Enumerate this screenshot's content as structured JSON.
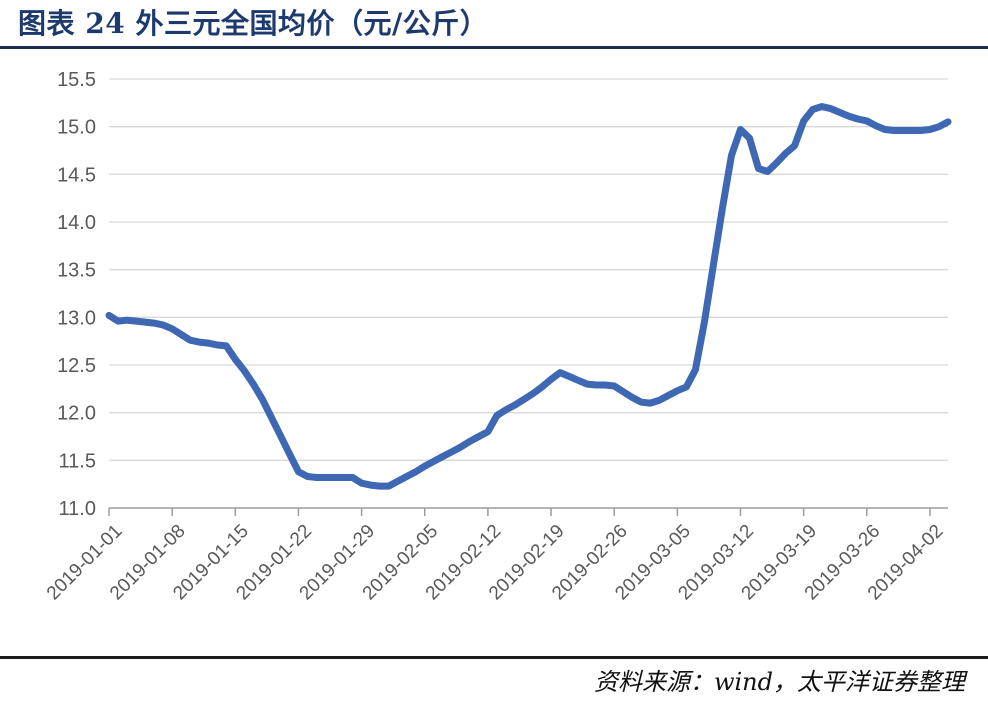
{
  "header": {
    "title": "图表 24  外三元全国均价（元/公斤）"
  },
  "footer": {
    "source": "资料来源：wind，太平洋证券整理"
  },
  "colors": {
    "title": "#1d3a6e",
    "title_rule": "#1c2c50",
    "separator": "#1a1a1a",
    "line": "#3e68b4",
    "gridline": "#d9d9d9",
    "axis": "#9b9b9b",
    "tick_label": "#595959"
  },
  "chart_data": {
    "type": "line",
    "title": "外三元全国均价（元/公斤）",
    "xlabel": "",
    "ylabel": "",
    "legend_position": "none",
    "grid": "horizontal",
    "ylim": [
      11.0,
      15.5
    ],
    "ytick_step": 0.5,
    "y_tick_labels": [
      "11.0",
      "11.5",
      "12.0",
      "12.5",
      "13.0",
      "13.5",
      "14.0",
      "14.5",
      "15.0",
      "15.5"
    ],
    "x_tick_labels": [
      "2019-01-01",
      "2019-01-08",
      "2019-01-15",
      "2019-01-22",
      "2019-01-29",
      "2019-02-05",
      "2019-02-12",
      "2019-02-19",
      "2019-02-26",
      "2019-03-05",
      "2019-03-12",
      "2019-03-19",
      "2019-03-26",
      "2019-04-02"
    ],
    "x_start": "2019-01-01",
    "x_end": "2019-04-04",
    "x_frequency_days": 1,
    "line_color": "#3e68b4",
    "gridline_color": "#d9d9d9",
    "axis_color": "#9b9b9b",
    "label_color": "#595959",
    "series": [
      {
        "name": "外三元全国均价",
        "values": [
          13.02,
          12.96,
          12.97,
          12.96,
          12.95,
          12.94,
          12.92,
          12.88,
          12.82,
          12.76,
          12.74,
          12.73,
          12.71,
          12.7,
          12.56,
          12.44,
          12.3,
          12.14,
          11.95,
          11.76,
          11.57,
          11.38,
          11.33,
          11.32,
          11.32,
          11.32,
          11.32,
          11.32,
          11.26,
          11.24,
          11.23,
          11.23,
          11.28,
          11.33,
          11.38,
          11.44,
          11.49,
          11.54,
          11.59,
          11.64,
          11.7,
          11.75,
          11.8,
          11.97,
          12.03,
          12.08,
          12.14,
          12.2,
          12.27,
          12.35,
          12.42,
          12.38,
          12.34,
          12.3,
          12.29,
          12.29,
          12.28,
          12.22,
          12.16,
          12.11,
          12.1,
          12.13,
          12.18,
          12.23,
          12.27,
          12.45,
          12.95,
          13.55,
          14.15,
          14.7,
          14.97,
          14.88,
          14.56,
          14.53,
          14.62,
          14.72,
          14.8,
          15.06,
          15.18,
          15.21,
          15.19,
          15.15,
          15.11,
          15.08,
          15.06,
          15.01,
          14.97,
          14.96,
          14.96,
          14.96,
          14.96,
          14.97,
          15.0,
          15.05
        ]
      }
    ]
  }
}
